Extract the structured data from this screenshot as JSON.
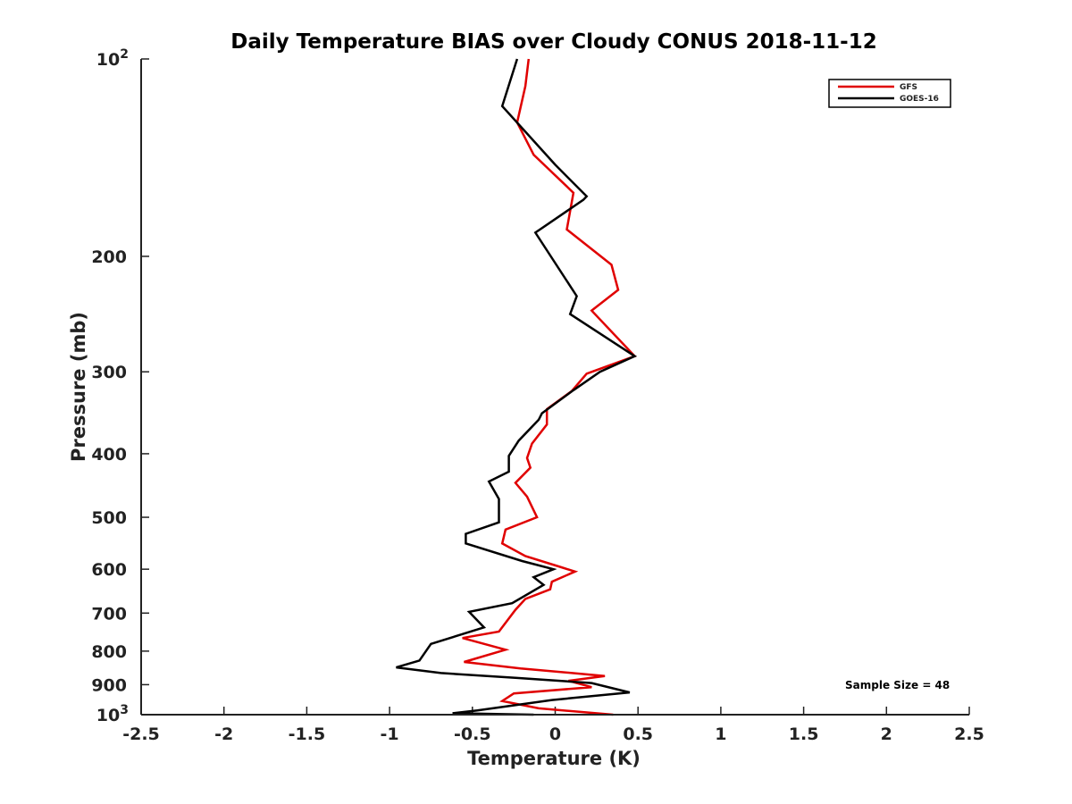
{
  "chart_data": {
    "type": "line",
    "title": "Daily Temperature BIAS over Cloudy CONUS 2018-11-12",
    "xlabel": "Temperature (K)",
    "ylabel": "Pressure (mb)",
    "xlim": [
      -2.5,
      2.5
    ],
    "ylim": [
      100,
      1000
    ],
    "y_scale": "log",
    "y_reversed": true,
    "x_ticks": [
      "-2.5",
      "-2",
      "-1.5",
      "-1",
      "-0.5",
      "0",
      "0.5",
      "1",
      "1.5",
      "2",
      "2.5"
    ],
    "y_ticks": [
      {
        "value": 100,
        "base": "10",
        "exp": "2"
      },
      {
        "value": 200,
        "label": "200"
      },
      {
        "value": 300,
        "label": "300"
      },
      {
        "value": 400,
        "label": "400"
      },
      {
        "value": 500,
        "label": "500"
      },
      {
        "value": 600,
        "label": "600"
      },
      {
        "value": 700,
        "label": "700"
      },
      {
        "value": 800,
        "label": "800"
      },
      {
        "value": 900,
        "label": "900"
      },
      {
        "value": 1000,
        "base": "10",
        "exp": "3"
      }
    ],
    "grid": false,
    "legend_position": "top-right",
    "annotation": "Sample Size = 48",
    "series": [
      {
        "name": "GFS",
        "color": "#e00000",
        "points": [
          [
            -0.16,
            100
          ],
          [
            -0.18,
            110
          ],
          [
            -0.23,
            125
          ],
          [
            -0.13,
            140
          ],
          [
            0.11,
            160
          ],
          [
            0.07,
            182
          ],
          [
            0.34,
            206
          ],
          [
            0.38,
            225
          ],
          [
            0.22,
            242
          ],
          [
            0.48,
            284
          ],
          [
            0.19,
            302
          ],
          [
            0.1,
            321
          ],
          [
            -0.05,
            342
          ],
          [
            -0.05,
            361
          ],
          [
            -0.14,
            386
          ],
          [
            -0.17,
            406
          ],
          [
            -0.15,
            420
          ],
          [
            -0.24,
            443
          ],
          [
            -0.17,
            465
          ],
          [
            -0.11,
            500
          ],
          [
            -0.3,
            522
          ],
          [
            -0.32,
            548
          ],
          [
            -0.18,
            573
          ],
          [
            0.02,
            594
          ],
          [
            0.12,
            605
          ],
          [
            -0.02,
            627
          ],
          [
            -0.03,
            644
          ],
          [
            -0.18,
            666
          ],
          [
            -0.24,
            692
          ],
          [
            -0.34,
            747
          ],
          [
            -0.56,
            764
          ],
          [
            -0.3,
            796
          ],
          [
            -0.55,
            831
          ],
          [
            -0.21,
            850
          ],
          [
            0.3,
            873
          ],
          [
            0.08,
            888
          ],
          [
            0.22,
            908
          ],
          [
            -0.25,
            928
          ],
          [
            -0.32,
            953
          ],
          [
            -0.1,
            978
          ],
          [
            0.35,
            1000
          ]
        ]
      },
      {
        "name": "GOES-16",
        "color": "#000000",
        "points": [
          [
            -0.23,
            100
          ],
          [
            -0.32,
            118
          ],
          [
            0,
            145
          ],
          [
            0.19,
            162
          ],
          [
            0.17,
            164
          ],
          [
            -0.12,
            184
          ],
          [
            0.13,
            230
          ],
          [
            0.09,
            245
          ],
          [
            0.48,
            284
          ],
          [
            0.27,
            300
          ],
          [
            0.11,
            320
          ],
          [
            -0.08,
            347
          ],
          [
            -0.1,
            355
          ],
          [
            -0.22,
            382
          ],
          [
            -0.28,
            403
          ],
          [
            -0.28,
            426
          ],
          [
            -0.4,
            441
          ],
          [
            -0.34,
            469
          ],
          [
            -0.34,
            509
          ],
          [
            -0.54,
            530
          ],
          [
            -0.54,
            548
          ],
          [
            -0.2,
            583
          ],
          [
            -0.01,
            600
          ],
          [
            -0.13,
            617
          ],
          [
            -0.07,
            634
          ],
          [
            -0.26,
            676
          ],
          [
            -0.52,
            697
          ],
          [
            -0.43,
            736
          ],
          [
            -0.75,
            780
          ],
          [
            -0.82,
            827
          ],
          [
            -0.96,
            847
          ],
          [
            -0.69,
            864
          ],
          [
            -0.23,
            879
          ],
          [
            0.22,
            895
          ],
          [
            0.45,
            925
          ],
          [
            -0.02,
            950
          ],
          [
            -0.47,
            985
          ],
          [
            -0.62,
            995
          ],
          [
            -0.13,
            1000
          ]
        ]
      }
    ]
  }
}
